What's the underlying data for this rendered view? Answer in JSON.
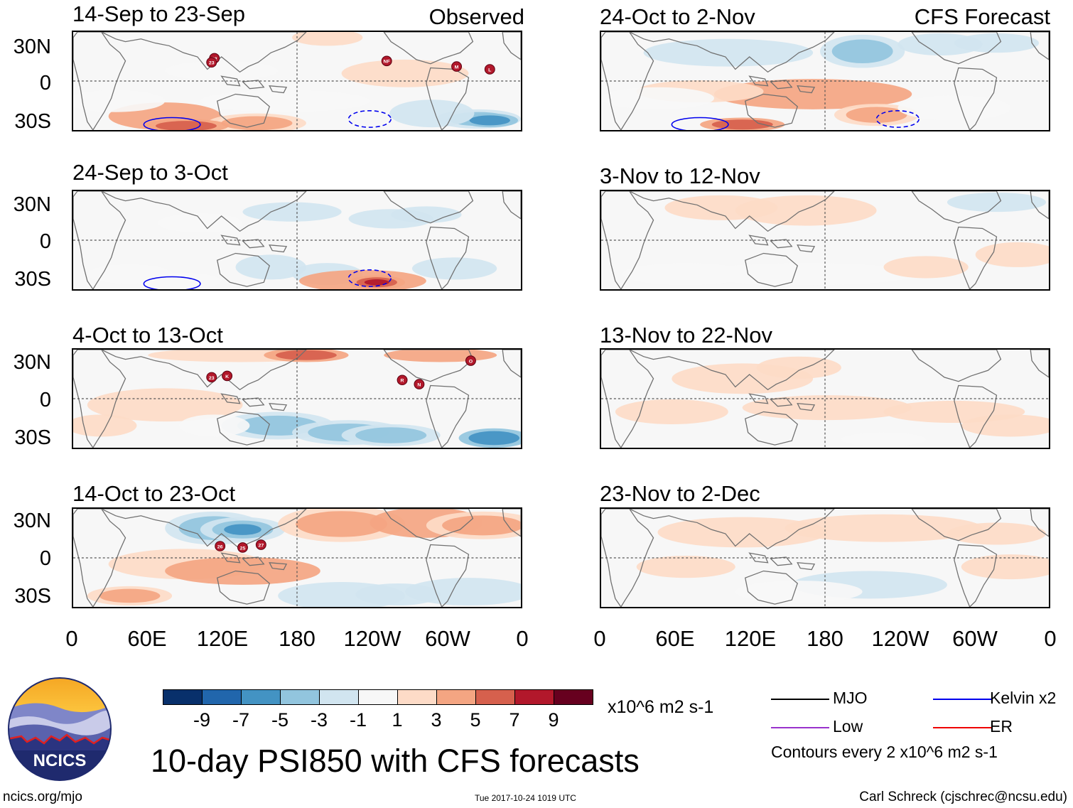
{
  "panels": {
    "left": [
      {
        "period": "14-Sep to 23-Sep",
        "tag": "Observed"
      },
      {
        "period": "24-Sep to 3-Oct",
        "tag": ""
      },
      {
        "period": "4-Oct to 13-Oct",
        "tag": ""
      },
      {
        "period": "14-Oct to 23-Oct",
        "tag": ""
      }
    ],
    "right": [
      {
        "period": "24-Oct to 2-Nov",
        "tag": "CFS Forecast"
      },
      {
        "period": "3-Nov to 12-Nov",
        "tag": ""
      },
      {
        "period": "13-Nov to 22-Nov",
        "tag": ""
      },
      {
        "period": "23-Nov to 2-Dec",
        "tag": ""
      }
    ]
  },
  "axes": {
    "lat_labels": [
      "30N",
      "0",
      "30S"
    ],
    "lon_labels": [
      "0",
      "60E",
      "120E",
      "180",
      "120W",
      "60W",
      "0"
    ]
  },
  "storm_markers": {
    "panel1": [
      "22",
      "23",
      "NF",
      "M",
      "L"
    ],
    "panel3": [
      "23",
      "K",
      "R",
      "N",
      "O"
    ],
    "panel4": [
      "26",
      "25",
      "27"
    ]
  },
  "colorbar": {
    "colors": [
      "#08306b",
      "#2166ac",
      "#4393c3",
      "#92c5de",
      "#d1e5f0",
      "#f7f7f7",
      "#fddbc7",
      "#f4a582",
      "#d6604d",
      "#b2182b",
      "#67001f"
    ],
    "labels": [
      "-9",
      "-7",
      "-5",
      "-3",
      "-1",
      "1",
      "3",
      "5",
      "7",
      "9"
    ],
    "units": "x10^6 m2 s-1"
  },
  "legend": {
    "items": [
      {
        "label": "MJO",
        "color": "#000000"
      },
      {
        "label": "Kelvin x2",
        "color": "#0000ee"
      },
      {
        "label": "Low",
        "color": "#9932cc"
      },
      {
        "label": "ER",
        "color": "#ee0000"
      }
    ],
    "contour_note": "Contours every 2 x10^6 m2 s-1"
  },
  "title": "10-day PSI850 with CFS forecasts",
  "logo_text": "NCICS",
  "footer": {
    "url": "ncics.org/mjo",
    "timestamp": "Tue 2017-10-24 1019 UTC",
    "credit": "Carl Schreck (cjschrec@ncsu.edu)"
  }
}
